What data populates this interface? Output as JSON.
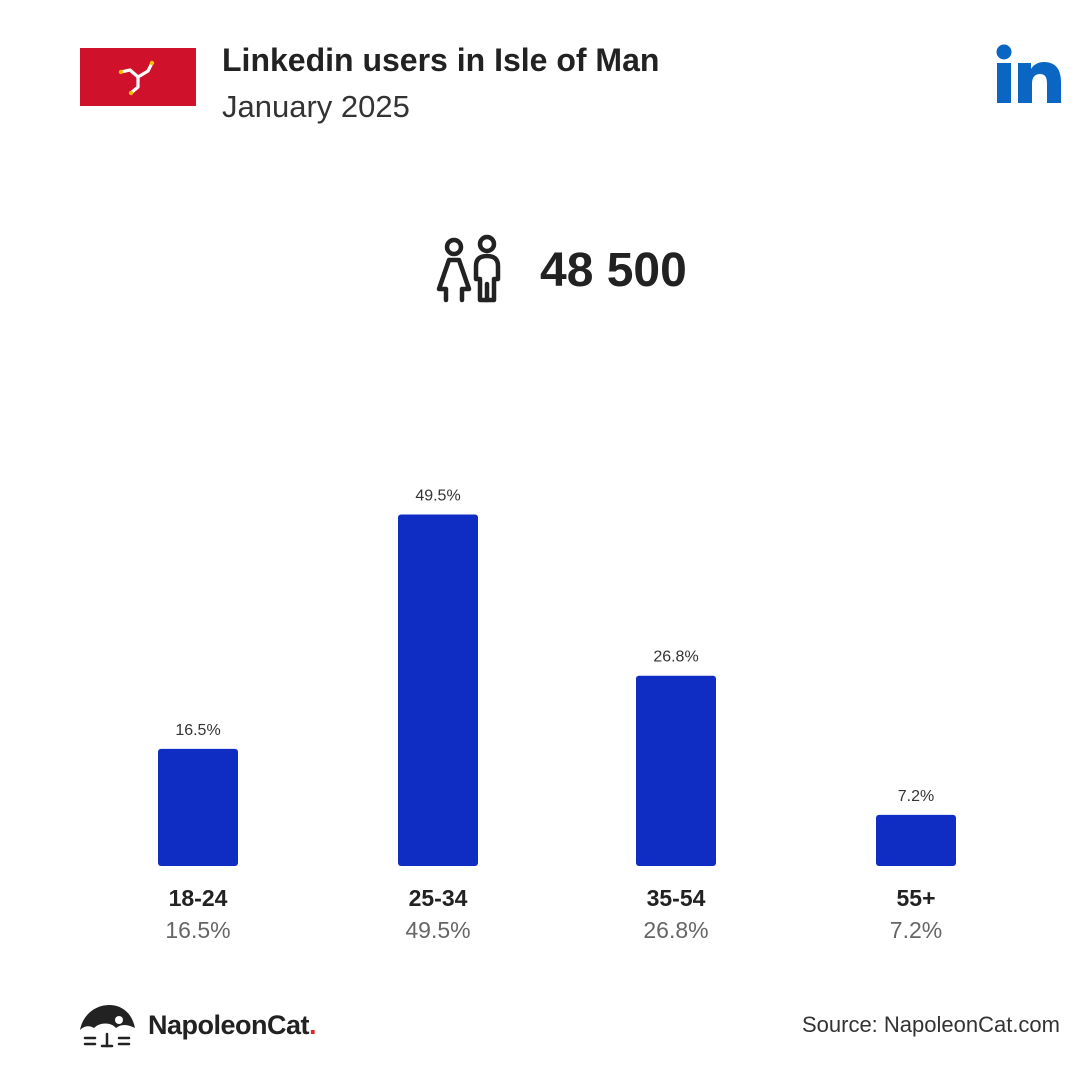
{
  "header": {
    "title": "Linkedin users in Isle of Man",
    "subtitle": "January 2025"
  },
  "summary": {
    "total_users": "48 500",
    "icon": "people-icon"
  },
  "colors": {
    "bar": "#0f2cc3",
    "flag_red": "#d0112b",
    "linkedin_blue": "#0a66c2",
    "brand_dot": "#e3262f"
  },
  "chart_data": {
    "type": "bar",
    "categories": [
      "18-24",
      "25-34",
      "35-54",
      "55+"
    ],
    "values": [
      16.5,
      49.5,
      26.8,
      7.2
    ],
    "value_labels": [
      "16.5%",
      "49.5%",
      "26.8%",
      "7.2%"
    ],
    "title": "Linkedin users in Isle of Man",
    "subtitle": "January 2025",
    "xlabel": "",
    "ylabel": "",
    "ylim": [
      0,
      50
    ],
    "grid": false,
    "legend": "none"
  },
  "footer": {
    "brand_name": "NapoleonCat",
    "brand_dot": ".",
    "source": "Source: NapoleonCat.com"
  }
}
